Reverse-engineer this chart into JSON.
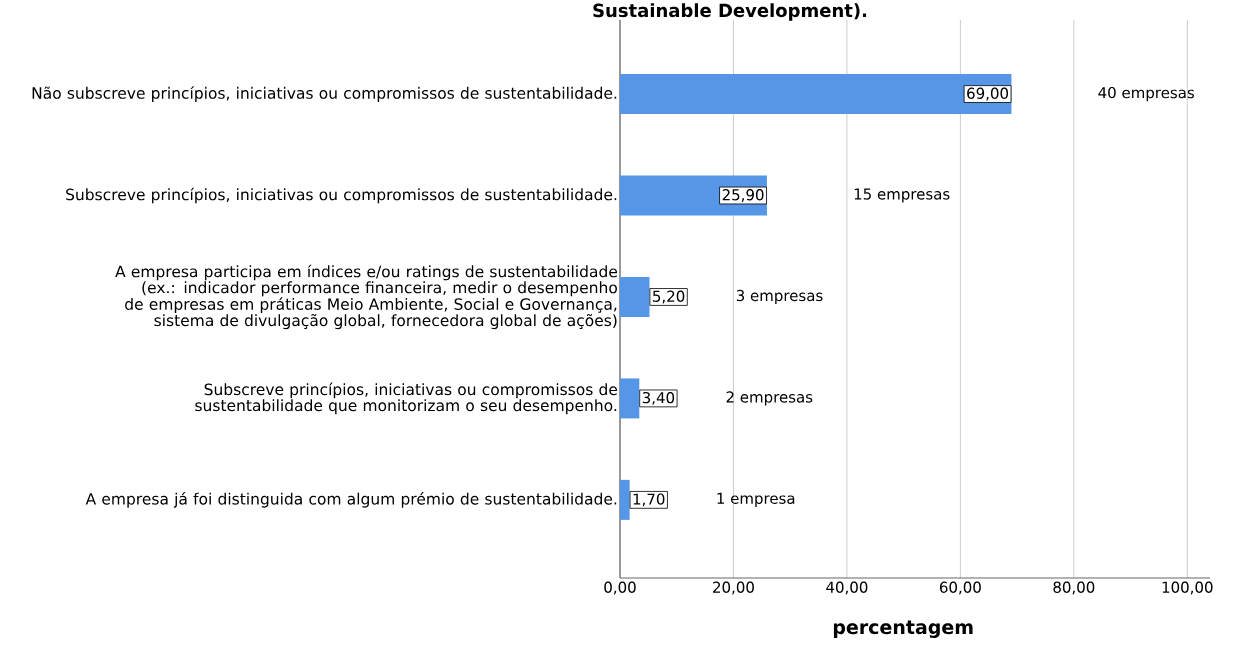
{
  "chart_data": {
    "type": "bar",
    "orientation": "horizontal",
    "title": "Sustainable Development).",
    "xlabel": "percentagem",
    "categories": [
      "Não subscreve princípios, iniciativas ou compromissos de sustentabilidade.",
      "Subscreve princípios, iniciativas ou compromissos de sustentabilidade.",
      "A empresa participa em índices e/ou ratings de sustentabilidade (ex.: indicador performance financeira, medir o desempenho de empresas em práticas Meio Ambiente, Social e Governança, sistema de divulgação global, fornecedora global de ações)",
      "Subscreve princípios, iniciativas ou compromissos de sustentabilidade que monitorizam o seu desempenho.",
      "A empresa já foi distinguida com algum prémio de sustentabilidade."
    ],
    "values": [
      69.0,
      25.9,
      5.2,
      3.4,
      1.7
    ],
    "value_labels": [
      "69,00",
      "25,90",
      "5,20",
      "3,40",
      "1,70"
    ],
    "color": "#5596e6",
    "xlim": [
      0,
      104
    ],
    "xticks": [
      {
        "value": 0,
        "label": "0,00"
      },
      {
        "value": 20,
        "label": "20,00"
      },
      {
        "value": 40,
        "label": "40,00"
      },
      {
        "value": 60,
        "label": "60,00"
      },
      {
        "value": 80,
        "label": "80,00"
      },
      {
        "value": 100,
        "label": "100,00"
      }
    ],
    "grid": "x",
    "annotations": [
      "40 empresas",
      "15 empresas",
      "3 empresas",
      "2 empresas",
      "1 empresa"
    ]
  }
}
